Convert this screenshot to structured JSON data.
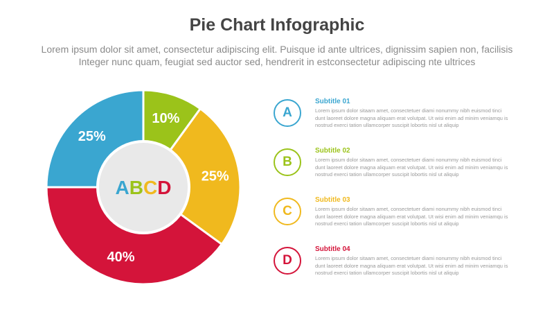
{
  "header": {
    "title": "Pie Chart Infographic",
    "description_line1": "Lorem ipsum dolor sit amet, consectetur adipiscing elit. Puisque id ante ultrices, dignissim sapien non, facilisis",
    "description_line2": "Integer nunc quam, feugiat sed auctor sed, hendrerit in estconsectetur adipiscing nte ultrices"
  },
  "chart_data": {
    "type": "pie",
    "donut": true,
    "center_label": [
      "A",
      "B",
      "C",
      "D"
    ],
    "categories": [
      "A",
      "B",
      "C",
      "D"
    ],
    "values": [
      10,
      25,
      40,
      25
    ],
    "labels": [
      "10%",
      "25%",
      "40%",
      "25%"
    ],
    "colors": [
      "#9bc31a",
      "#f0b91e",
      "#d4143a",
      "#3aa6d0"
    ],
    "start": "12 o'clock, clockwise"
  },
  "legend": [
    {
      "letter": "A",
      "subtitle": "Subtitle 01",
      "color": "#3aa6d0",
      "text": "Lorem ipsum dolor sitaam amet, consectetuer diami nonummy nibh euismod tinci dunt laoreet dolore magna aliquam erat volutpat. Ut wisi enim ad minim veniamqu is nostrud exerci tation ullamcorper suscipit lobortis nisl ut aliquip"
    },
    {
      "letter": "B",
      "subtitle": "Subtitle 02",
      "color": "#9bc31a",
      "text": "Lorem ipsum dolor sitaam amet, consectetuer diami nonummy nibh euismod tinci dunt laoreet dolore magna aliquam erat volutpat. Ut wisi enim ad minim veniamqu is nostrud exerci tation ullamcorper suscipit lobortis nisl ut aliquip"
    },
    {
      "letter": "C",
      "subtitle": "Subtitle 03",
      "color": "#f0b91e",
      "text": "Lorem ipsum dolor sitaam amet, consectetuer diami nonummy nibh euismod tinci dunt laoreet dolore magna aliquam erat volutpat. Ut wisi enim ad minim veniamqu is nostrud exerci tation ullamcorper suscipit lobortis nisl ut aliquip"
    },
    {
      "letter": "D",
      "subtitle": "Subtitle 04",
      "color": "#d4143a",
      "text": "Lorem ipsum dolor sitaam amet, consectetuer diami nonummy nibh euismod tinci dunt laoreet dolore magna aliquam erat volutpat. Ut wisi enim ad minim veniamqu is nostrud exerci tation ullamcorper suscipit lobortis nisl ut aliquip"
    }
  ]
}
